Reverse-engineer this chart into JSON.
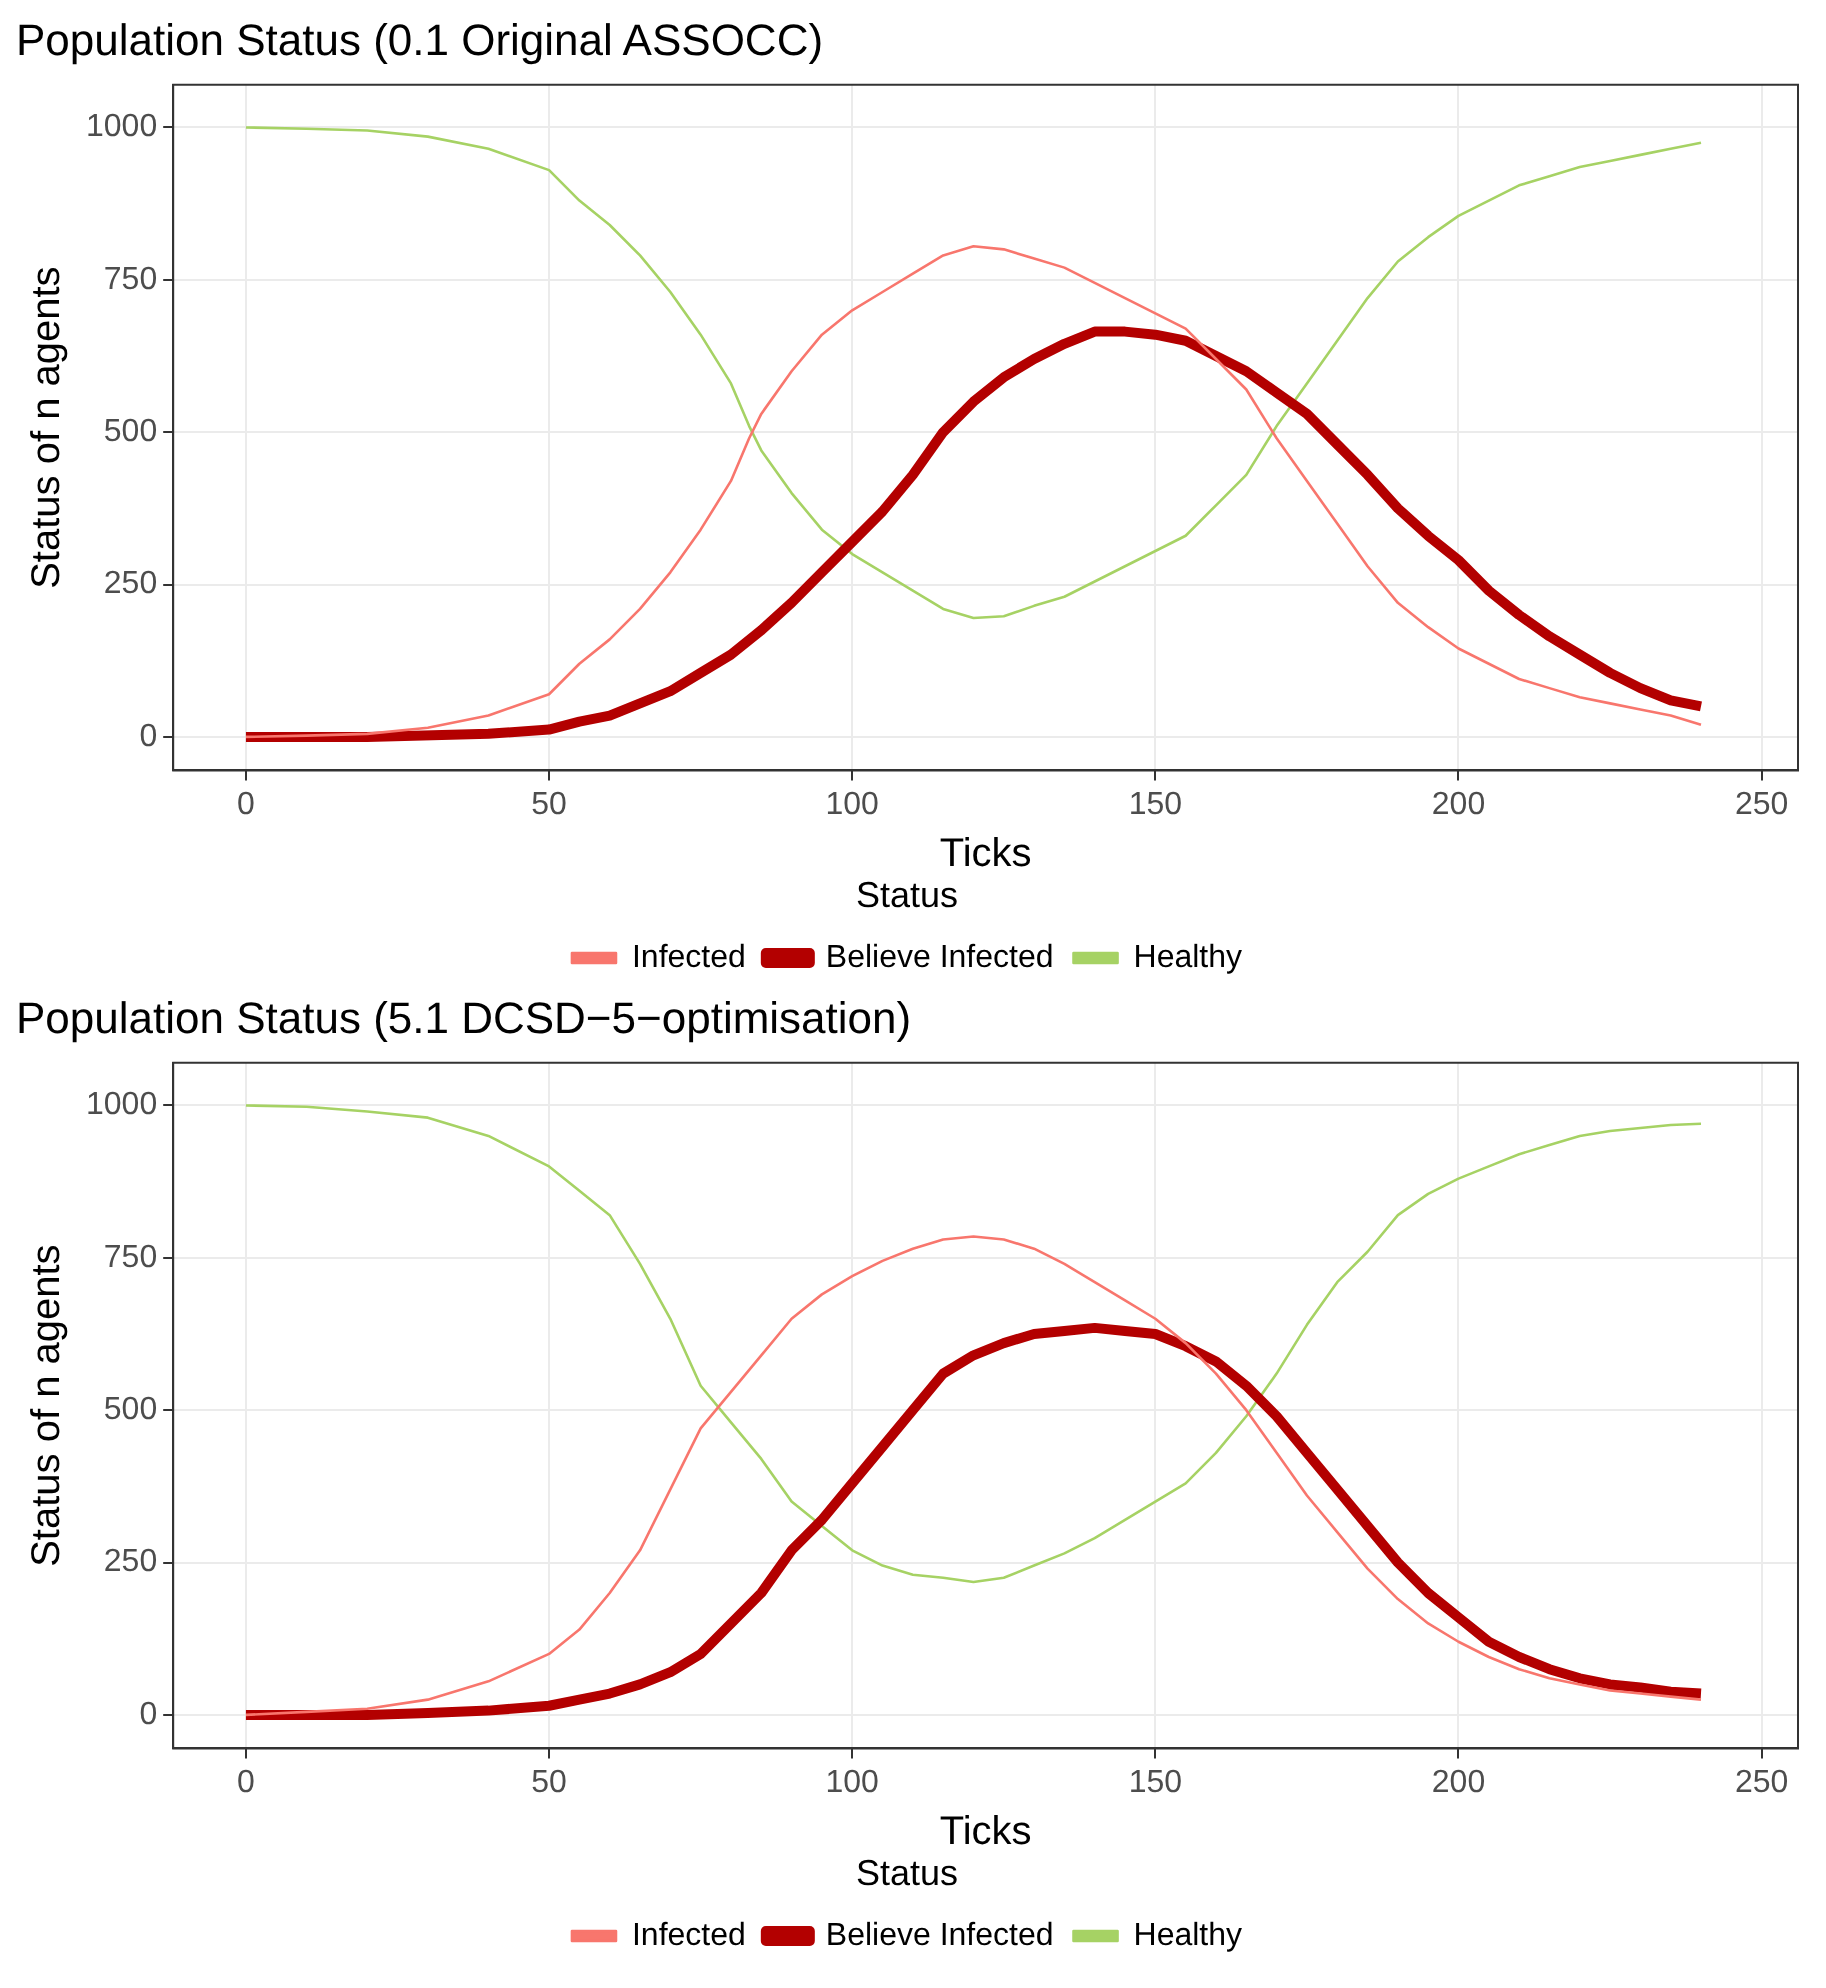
{
  "chart_data": [
    {
      "type": "line",
      "title": "Population Status (0.1 Original ASSOCC)",
      "xlabel": "Ticks",
      "ylabel": "Status of n agents",
      "legend_title": "Status",
      "legend": "bottom",
      "grid": true,
      "xlim": [
        -12,
        256
      ],
      "ylim": [
        -55,
        1070
      ],
      "xticks": [
        0,
        50,
        100,
        150,
        200,
        250
      ],
      "yticks": [
        0,
        250,
        500,
        750,
        1000
      ],
      "series": [
        {
          "name": "Infected",
          "color": "#f8766d",
          "x": [
            0,
            10,
            20,
            30,
            40,
            50,
            55,
            60,
            65,
            70,
            75,
            80,
            83,
            85,
            90,
            95,
            100,
            105,
            110,
            115,
            120,
            125,
            130,
            135,
            140,
            145,
            150,
            155,
            160,
            165,
            170,
            175,
            180,
            185,
            190,
            195,
            200,
            205,
            210,
            215,
            220,
            225,
            230,
            235,
            240
          ],
          "values": [
            0,
            2,
            5,
            15,
            35,
            70,
            120,
            160,
            210,
            270,
            340,
            420,
            490,
            530,
            600,
            660,
            700,
            730,
            760,
            790,
            805,
            800,
            785,
            770,
            745,
            720,
            695,
            670,
            620,
            570,
            490,
            420,
            350,
            280,
            220,
            180,
            145,
            120,
            95,
            80,
            65,
            55,
            45,
            35,
            20
          ]
        },
        {
          "name": "Believe Infected",
          "color": "#b30000",
          "x": [
            0,
            20,
            40,
            50,
            55,
            60,
            65,
            70,
            75,
            80,
            85,
            90,
            95,
            100,
            105,
            110,
            115,
            120,
            125,
            130,
            135,
            140,
            145,
            150,
            155,
            160,
            165,
            170,
            175,
            180,
            185,
            190,
            195,
            200,
            205,
            210,
            215,
            220,
            225,
            230,
            235,
            240
          ],
          "values": [
            0,
            0,
            5,
            12,
            25,
            35,
            55,
            75,
            105,
            135,
            175,
            220,
            270,
            320,
            370,
            430,
            500,
            550,
            590,
            620,
            645,
            665,
            665,
            660,
            650,
            625,
            600,
            565,
            530,
            480,
            430,
            375,
            330,
            290,
            240,
            200,
            165,
            135,
            105,
            80,
            60,
            50
          ]
        },
        {
          "name": "Healthy",
          "color": "#a6d264",
          "x": [
            0,
            10,
            20,
            30,
            40,
            50,
            55,
            60,
            65,
            70,
            75,
            80,
            83,
            85,
            90,
            95,
            100,
            105,
            110,
            115,
            120,
            125,
            130,
            135,
            140,
            145,
            150,
            155,
            160,
            165,
            170,
            175,
            180,
            185,
            190,
            195,
            200,
            205,
            210,
            215,
            220,
            225,
            230,
            235,
            240
          ],
          "values": [
            1000,
            998,
            995,
            985,
            965,
            930,
            880,
            840,
            790,
            730,
            660,
            580,
            510,
            470,
            400,
            340,
            300,
            270,
            240,
            210,
            195,
            198,
            215,
            230,
            255,
            280,
            305,
            330,
            380,
            430,
            510,
            580,
            650,
            720,
            780,
            820,
            855,
            880,
            905,
            920,
            935,
            945,
            955,
            965,
            975
          ]
        }
      ]
    },
    {
      "type": "line",
      "title": "Population Status (5.1 DCSD−5−optimisation)",
      "xlabel": "Ticks",
      "ylabel": "Status of n agents",
      "legend_title": "Status",
      "legend": "bottom",
      "grid": true,
      "xlim": [
        -12,
        256
      ],
      "ylim": [
        -55,
        1070
      ],
      "xticks": [
        0,
        50,
        100,
        150,
        200,
        250
      ],
      "yticks": [
        0,
        250,
        500,
        750,
        1000
      ],
      "series": [
        {
          "name": "Infected",
          "color": "#f8766d",
          "x": [
            0,
            10,
            20,
            30,
            40,
            50,
            55,
            60,
            65,
            70,
            75,
            80,
            85,
            90,
            95,
            100,
            105,
            110,
            115,
            120,
            125,
            130,
            135,
            140,
            145,
            150,
            155,
            160,
            165,
            170,
            175,
            180,
            185,
            190,
            195,
            200,
            205,
            210,
            215,
            220,
            225,
            230,
            235,
            240
          ],
          "values": [
            0,
            5,
            10,
            25,
            55,
            100,
            140,
            200,
            270,
            370,
            470,
            530,
            590,
            650,
            690,
            720,
            745,
            765,
            780,
            785,
            780,
            765,
            740,
            710,
            680,
            650,
            610,
            560,
            500,
            430,
            360,
            300,
            240,
            190,
            150,
            120,
            95,
            75,
            60,
            50,
            40,
            35,
            30,
            25
          ]
        },
        {
          "name": "Believe Infected",
          "color": "#b30000",
          "x": [
            0,
            20,
            30,
            40,
            50,
            55,
            60,
            65,
            70,
            75,
            80,
            85,
            90,
            95,
            100,
            105,
            110,
            115,
            120,
            125,
            130,
            135,
            140,
            145,
            150,
            155,
            160,
            165,
            170,
            175,
            180,
            185,
            190,
            195,
            200,
            205,
            210,
            215,
            220,
            225,
            230,
            235,
            240
          ],
          "values": [
            0,
            0,
            3,
            7,
            15,
            25,
            35,
            50,
            70,
            100,
            150,
            200,
            270,
            320,
            380,
            440,
            500,
            560,
            590,
            610,
            625,
            630,
            635,
            630,
            625,
            605,
            580,
            540,
            490,
            430,
            370,
            310,
            250,
            200,
            160,
            120,
            95,
            75,
            60,
            50,
            45,
            38,
            35
          ]
        },
        {
          "name": "Healthy",
          "color": "#a6d264",
          "x": [
            0,
            10,
            20,
            30,
            40,
            50,
            55,
            60,
            65,
            70,
            75,
            80,
            85,
            90,
            95,
            100,
            105,
            110,
            115,
            120,
            125,
            130,
            135,
            140,
            145,
            150,
            155,
            160,
            165,
            170,
            175,
            180,
            185,
            190,
            195,
            200,
            205,
            210,
            215,
            220,
            225,
            230,
            235,
            240
          ],
          "values": [
            1000,
            998,
            990,
            980,
            950,
            900,
            860,
            820,
            740,
            650,
            540,
            480,
            420,
            350,
            310,
            270,
            245,
            230,
            225,
            218,
            225,
            245,
            265,
            290,
            320,
            350,
            380,
            430,
            490,
            560,
            640,
            710,
            760,
            820,
            855,
            880,
            900,
            920,
            935,
            950,
            958,
            963,
            968,
            970
          ]
        }
      ]
    }
  ]
}
